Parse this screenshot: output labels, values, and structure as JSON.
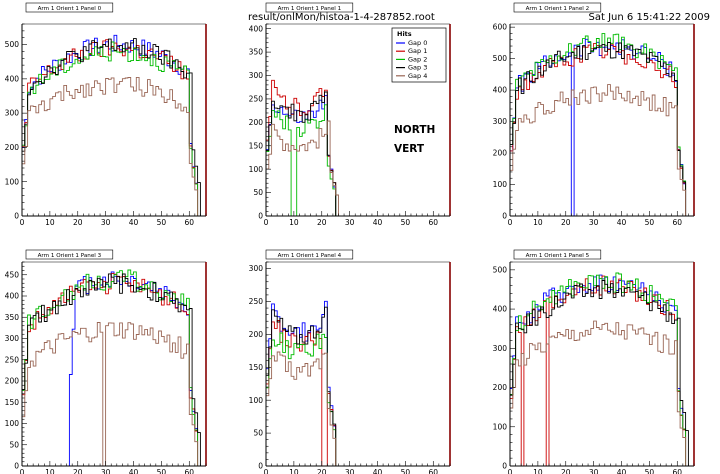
{
  "header": {
    "filename": "result/onlMon/histoa-1-4-287852.root",
    "timestamp": "Sat Jun  6 15:41:22 2009"
  },
  "annotations": {
    "north": "NORTH",
    "vert": "VERT"
  },
  "legend": {
    "title": "Hits",
    "entries": [
      "Gap 0",
      "Gap 1",
      "Gap 2",
      "Gap 3",
      "Gap 4"
    ]
  },
  "colors": {
    "gap0": "#0000ff",
    "gap1": "#cc0000",
    "gap2": "#00bb00",
    "gap3": "#000000",
    "gap4": "#996655",
    "frame_right": "#880000"
  },
  "chart_data": [
    {
      "type": "line",
      "title": "Arm 1 Orient 1 Panel 0",
      "xlim": [
        0,
        66
      ],
      "ylim": [
        0,
        560
      ],
      "xticks": [
        0,
        10,
        20,
        30,
        40,
        50,
        60
      ],
      "yticks": [
        0,
        100,
        200,
        300,
        400,
        500
      ],
      "profile": "full",
      "series": [
        {
          "name": "Gap 0",
          "start": 0,
          "end": 63,
          "level": 500,
          "gaps": []
        },
        {
          "name": "Gap 1",
          "start": 0,
          "end": 63,
          "level": 490,
          "gaps": []
        },
        {
          "name": "Gap 2",
          "start": 0,
          "end": 63,
          "level": 480,
          "gaps": []
        },
        {
          "name": "Gap 3",
          "start": 0,
          "end": 64,
          "level": 495,
          "gaps": []
        },
        {
          "name": "Gap 4",
          "start": 0,
          "end": 63,
          "level": 385,
          "gaps": []
        }
      ]
    },
    {
      "type": "line",
      "title": "Arm 1 Orient 1 Panel 1",
      "xlim": [
        0,
        66
      ],
      "ylim": [
        0,
        410
      ],
      "xticks": [
        0,
        10,
        20,
        30,
        40,
        50,
        60
      ],
      "yticks": [
        0,
        50,
        100,
        150,
        200,
        250,
        300,
        350,
        400
      ],
      "profile": "valley",
      "series": [
        {
          "name": "Gap 0",
          "start": 0,
          "end": 25,
          "level": 290,
          "gaps": []
        },
        {
          "name": "Gap 1",
          "start": 0,
          "end": 25,
          "level": 320,
          "gaps": []
        },
        {
          "name": "Gap 2",
          "start": 0,
          "end": 25,
          "level": 260,
          "gaps": [
            [
              9,
              11
            ]
          ]
        },
        {
          "name": "Gap 3",
          "start": 0,
          "end": 25,
          "level": 300,
          "gaps": []
        },
        {
          "name": "Gap 4",
          "start": 0,
          "end": 26,
          "level": 210,
          "gaps": []
        }
      ]
    },
    {
      "type": "line",
      "title": "Arm 1 Orient 1 Panel 2",
      "xlim": [
        0,
        66
      ],
      "ylim": [
        0,
        610
      ],
      "xticks": [
        0,
        10,
        20,
        30,
        40,
        50,
        60
      ],
      "yticks": [
        0,
        100,
        200,
        300,
        400,
        500,
        600
      ],
      "profile": "full",
      "series": [
        {
          "name": "Gap 0",
          "start": 0,
          "end": 63,
          "level": 540,
          "gaps": [
            [
              22,
              23
            ]
          ]
        },
        {
          "name": "Gap 1",
          "start": 0,
          "end": 63,
          "level": 520,
          "gaps": []
        },
        {
          "name": "Gap 2",
          "start": 0,
          "end": 63,
          "level": 550,
          "gaps": []
        },
        {
          "name": "Gap 3",
          "start": 0,
          "end": 63,
          "level": 530,
          "gaps": []
        },
        {
          "name": "Gap 4",
          "start": 0,
          "end": 63,
          "level": 390,
          "gaps": []
        }
      ]
    },
    {
      "type": "line",
      "title": "Arm 1 Orient 1 Panel 3",
      "xlim": [
        0,
        66
      ],
      "ylim": [
        0,
        480
      ],
      "xticks": [
        0,
        10,
        20,
        30,
        40,
        50,
        60
      ],
      "yticks": [
        0,
        50,
        100,
        150,
        200,
        250,
        300,
        350,
        400,
        450
      ],
      "profile": "full",
      "series": [
        {
          "name": "Gap 0",
          "start": 17,
          "end": 63,
          "level": 440,
          "gaps": []
        },
        {
          "name": "Gap 1",
          "start": 0,
          "end": 63,
          "level": 430,
          "gaps": []
        },
        {
          "name": "Gap 2",
          "start": 0,
          "end": 63,
          "level": 440,
          "gaps": []
        },
        {
          "name": "Gap 3",
          "start": 0,
          "end": 64,
          "level": 430,
          "gaps": []
        },
        {
          "name": "Gap 4",
          "start": 0,
          "end": 63,
          "level": 320,
          "gaps": [
            [
              29,
              30
            ]
          ]
        }
      ]
    },
    {
      "type": "line",
      "title": "Arm 1 Orient 1 Panel 4",
      "xlim": [
        0,
        66
      ],
      "ylim": [
        0,
        310
      ],
      "xticks": [
        0,
        10,
        20,
        30,
        40,
        50,
        60
      ],
      "yticks": [
        0,
        50,
        100,
        150,
        200,
        250,
        300
      ],
      "profile": "valley",
      "series": [
        {
          "name": "Gap 0",
          "start": 0,
          "end": 25,
          "level": 280,
          "gaps": []
        },
        {
          "name": "Gap 1",
          "start": 0,
          "end": 25,
          "level": 260,
          "gaps": [
            [
              20,
              22
            ]
          ]
        },
        {
          "name": "Gap 2",
          "start": 0,
          "end": 25,
          "level": 240,
          "gaps": []
        },
        {
          "name": "Gap 3",
          "start": 0,
          "end": 25,
          "level": 270,
          "gaps": []
        },
        {
          "name": "Gap 4",
          "start": 0,
          "end": 25,
          "level": 200,
          "gaps": []
        }
      ]
    },
    {
      "type": "line",
      "title": "Arm 1 Orient 1 Panel 5",
      "xlim": [
        0,
        66
      ],
      "ylim": [
        0,
        520
      ],
      "xticks": [
        0,
        10,
        20,
        30,
        40,
        50,
        60
      ],
      "yticks": [
        0,
        100,
        200,
        300,
        400,
        500
      ],
      "profile": "full",
      "series": [
        {
          "name": "Gap 0",
          "start": 0,
          "end": 63,
          "level": 470,
          "gaps": []
        },
        {
          "name": "Gap 1",
          "start": 0,
          "end": 63,
          "level": 460,
          "gaps": [
            [
              4,
              5
            ],
            [
              13,
              14
            ]
          ]
        },
        {
          "name": "Gap 2",
          "start": 0,
          "end": 63,
          "level": 470,
          "gaps": []
        },
        {
          "name": "Gap 3",
          "start": 0,
          "end": 64,
          "level": 450,
          "gaps": []
        },
        {
          "name": "Gap 4",
          "start": 0,
          "end": 63,
          "level": 350,
          "gaps": []
        }
      ]
    }
  ]
}
